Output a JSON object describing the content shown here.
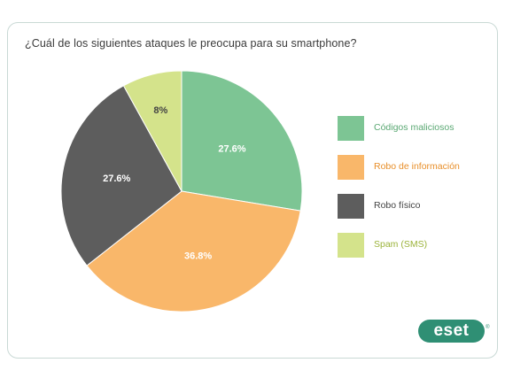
{
  "chart_data": {
    "type": "pie",
    "title": "¿Cuál de los siguientes ataques le preocupa para su smartphone?",
    "slices": [
      {
        "name": "Códigos maliciosos",
        "value": 27.6,
        "label": "27.6%",
        "color": "#7dc594",
        "label_color": "#ffffff",
        "legend_text_color": "#5aa873"
      },
      {
        "name": "Robo de información",
        "value": 36.8,
        "label": "36.8%",
        "color": "#f9b76a",
        "label_color": "#ffffff",
        "legend_text_color": "#e88f2a"
      },
      {
        "name": "Robo físico",
        "value": 27.6,
        "label": "27.6%",
        "color": "#5d5d5d",
        "label_color": "#ffffff",
        "legend_text_color": "#444444"
      },
      {
        "name": "Spam (SMS)",
        "value": 8,
        "label": "8%",
        "color": "#d4e38b",
        "label_color": "#444444",
        "legend_text_color": "#9bb33a"
      }
    ],
    "start": "12 o'clock",
    "direction": "clockwise",
    "legend_position": "right"
  },
  "brand": {
    "logo_text": "eset",
    "color": "#2f8f74"
  }
}
